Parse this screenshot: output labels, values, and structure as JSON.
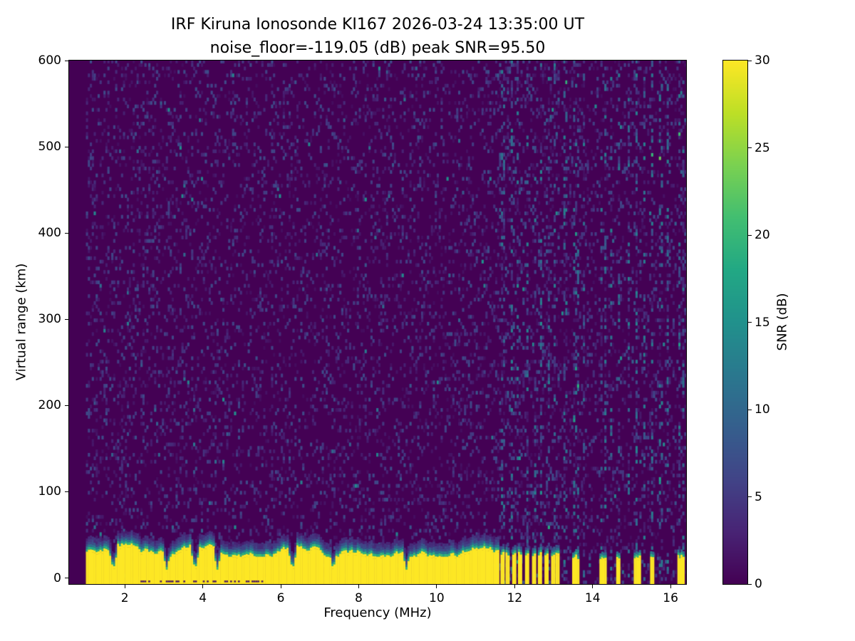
{
  "title": {
    "line1": "IRF Kiruna Ionosonde KI167 2026-03-24 13:35:00  UT",
    "line2": "noise_floor=-119.05 (dB) peak SNR=95.50"
  },
  "axes": {
    "xlabel": "Frequency (MHz)",
    "ylabel": "Virtual range (km)",
    "x_ticks": [
      2,
      4,
      6,
      8,
      10,
      12,
      14,
      16
    ],
    "y_ticks": [
      0,
      100,
      200,
      300,
      400,
      500,
      600
    ],
    "x_range": [
      0.57,
      16.4
    ],
    "y_range": [
      -7,
      600
    ]
  },
  "colorbar": {
    "label": "SNR (dB)",
    "ticks": [
      0,
      5,
      10,
      15,
      20,
      25,
      30
    ],
    "range": [
      0,
      30
    ],
    "colormap": "viridis"
  },
  "chart_data": {
    "type": "heatmap",
    "title": "IRF Kiruna Ionosonde KI167 2026-03-24 13:35:00  UT",
    "subtitle": "noise_floor=-119.05 (dB) peak SNR=95.50",
    "station": "IRF Kiruna Ionosonde KI167",
    "timestamp_ut": "2026-03-24 13:35:00",
    "noise_floor_db": -119.05,
    "peak_snr_db": 95.5,
    "xlabel": "Frequency (MHz)",
    "ylabel": "Virtual range (km)",
    "zlabel": "SNR (dB)",
    "x_range_mhz": [
      0.57,
      16.4
    ],
    "y_range_km": [
      -7,
      600
    ],
    "z_range_db": [
      0,
      30
    ],
    "colormap": "viridis",
    "background_color_snr0": "#440154",
    "saturated_color_snr30": "#fde725",
    "sweep": {
      "f_start_mhz": 1.0,
      "f_stop_mhz": 16.38,
      "df_mhz": 0.05,
      "dv_km": 4
    },
    "background_speckle": {
      "density": 0.27,
      "max_snr_db": 8
    },
    "ground_clutter": {
      "description": "saturated near-range echo band, SNR ~30 dB from bottom of plot up to ragged top edge with green/teal transition cap",
      "f_start_mhz": 1.0,
      "f_stop_mhz": 11.6,
      "top_km_min": 22,
      "top_km_max": 40,
      "snr_db": 30,
      "notches_mhz": [
        1.68,
        3.05,
        3.78,
        4.35,
        6.28,
        7.32,
        9.2
      ]
    },
    "intermittent_stripes_mhz": [
      11.67,
      11.8,
      11.97,
      12.12,
      12.3,
      12.48,
      12.63,
      12.8,
      12.97,
      13.08
    ],
    "sparse_stripes_mhz": [
      13.5,
      13.58,
      14.2,
      14.28,
      14.63,
      15.08,
      15.16,
      15.5,
      16.2,
      16.28
    ],
    "rfi_noise_columns_mhz": [
      11.67,
      11.9,
      12.05,
      12.3,
      12.5,
      12.65,
      12.85,
      13.0,
      13.28,
      13.5,
      13.56,
      13.75,
      14.2,
      14.3,
      14.45,
      14.65,
      14.9,
      15.1,
      15.3,
      15.5,
      15.72,
      15.9,
      16.2,
      16.3
    ]
  }
}
